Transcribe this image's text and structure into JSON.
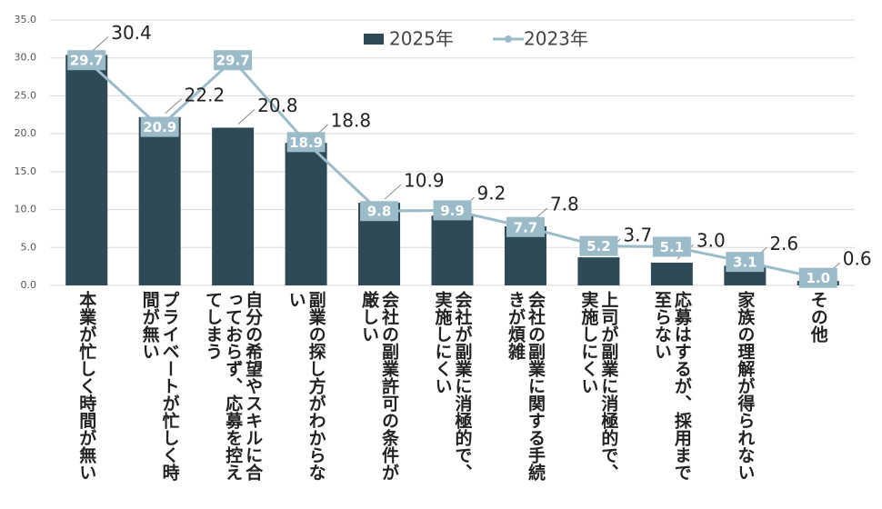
{
  "chart_data": {
    "type": "combo",
    "categories": [
      "本業が忙しく時間が無い",
      "プライベートが忙しく時間が無い",
      "自分の希望やスキルに合っておらず、応募を控えてしまう",
      "副業の探し方がわからない",
      "会社の副業許可の条件が厳しい",
      "会社が副業に消極的で、実施しにくい",
      "会社の副業に関する手続きが煩雑",
      "上司が副業に消極的で、実施しにくい",
      "応募はするが、採用まで至らない",
      "家族の理解が得られない",
      "その他"
    ],
    "series": [
      {
        "name": "2025年",
        "type": "bar",
        "color": "#2e4a56",
        "values": [
          30.4,
          22.2,
          20.8,
          18.8,
          10.9,
          9.2,
          7.8,
          3.7,
          3.0,
          2.6,
          0.6
        ],
        "value_labels": [
          "30.4",
          "22.2",
          "20.8",
          "18.8",
          "10.9",
          "9.2",
          "7.8",
          "3.7",
          "3.0",
          "2.6",
          "0.6"
        ]
      },
      {
        "name": "2023年",
        "type": "line",
        "color": "#9bbbc9",
        "values": [
          29.7,
          20.9,
          29.7,
          18.9,
          9.8,
          9.9,
          7.7,
          5.2,
          5.1,
          3.1,
          1.0
        ],
        "value_labels": [
          "29.7",
          "20.9",
          "29.7",
          "18.9",
          "9.8",
          "9.9",
          "7.7",
          "5.2",
          "5.1",
          "3.1",
          "1.0"
        ]
      }
    ],
    "ylim": [
      0,
      35
    ],
    "yticks": [
      {
        "value": 0,
        "label": "0.0"
      },
      {
        "value": 5,
        "label": "5.0"
      },
      {
        "value": 10,
        "label": "10.0"
      },
      {
        "value": 15,
        "label": "15.0"
      },
      {
        "value": 20,
        "label": "20.0"
      },
      {
        "value": 25,
        "label": "25.0"
      },
      {
        "value": 30,
        "label": "30.0"
      },
      {
        "value": 35,
        "label": "35.0"
      }
    ],
    "grid": true,
    "legend": "top"
  }
}
